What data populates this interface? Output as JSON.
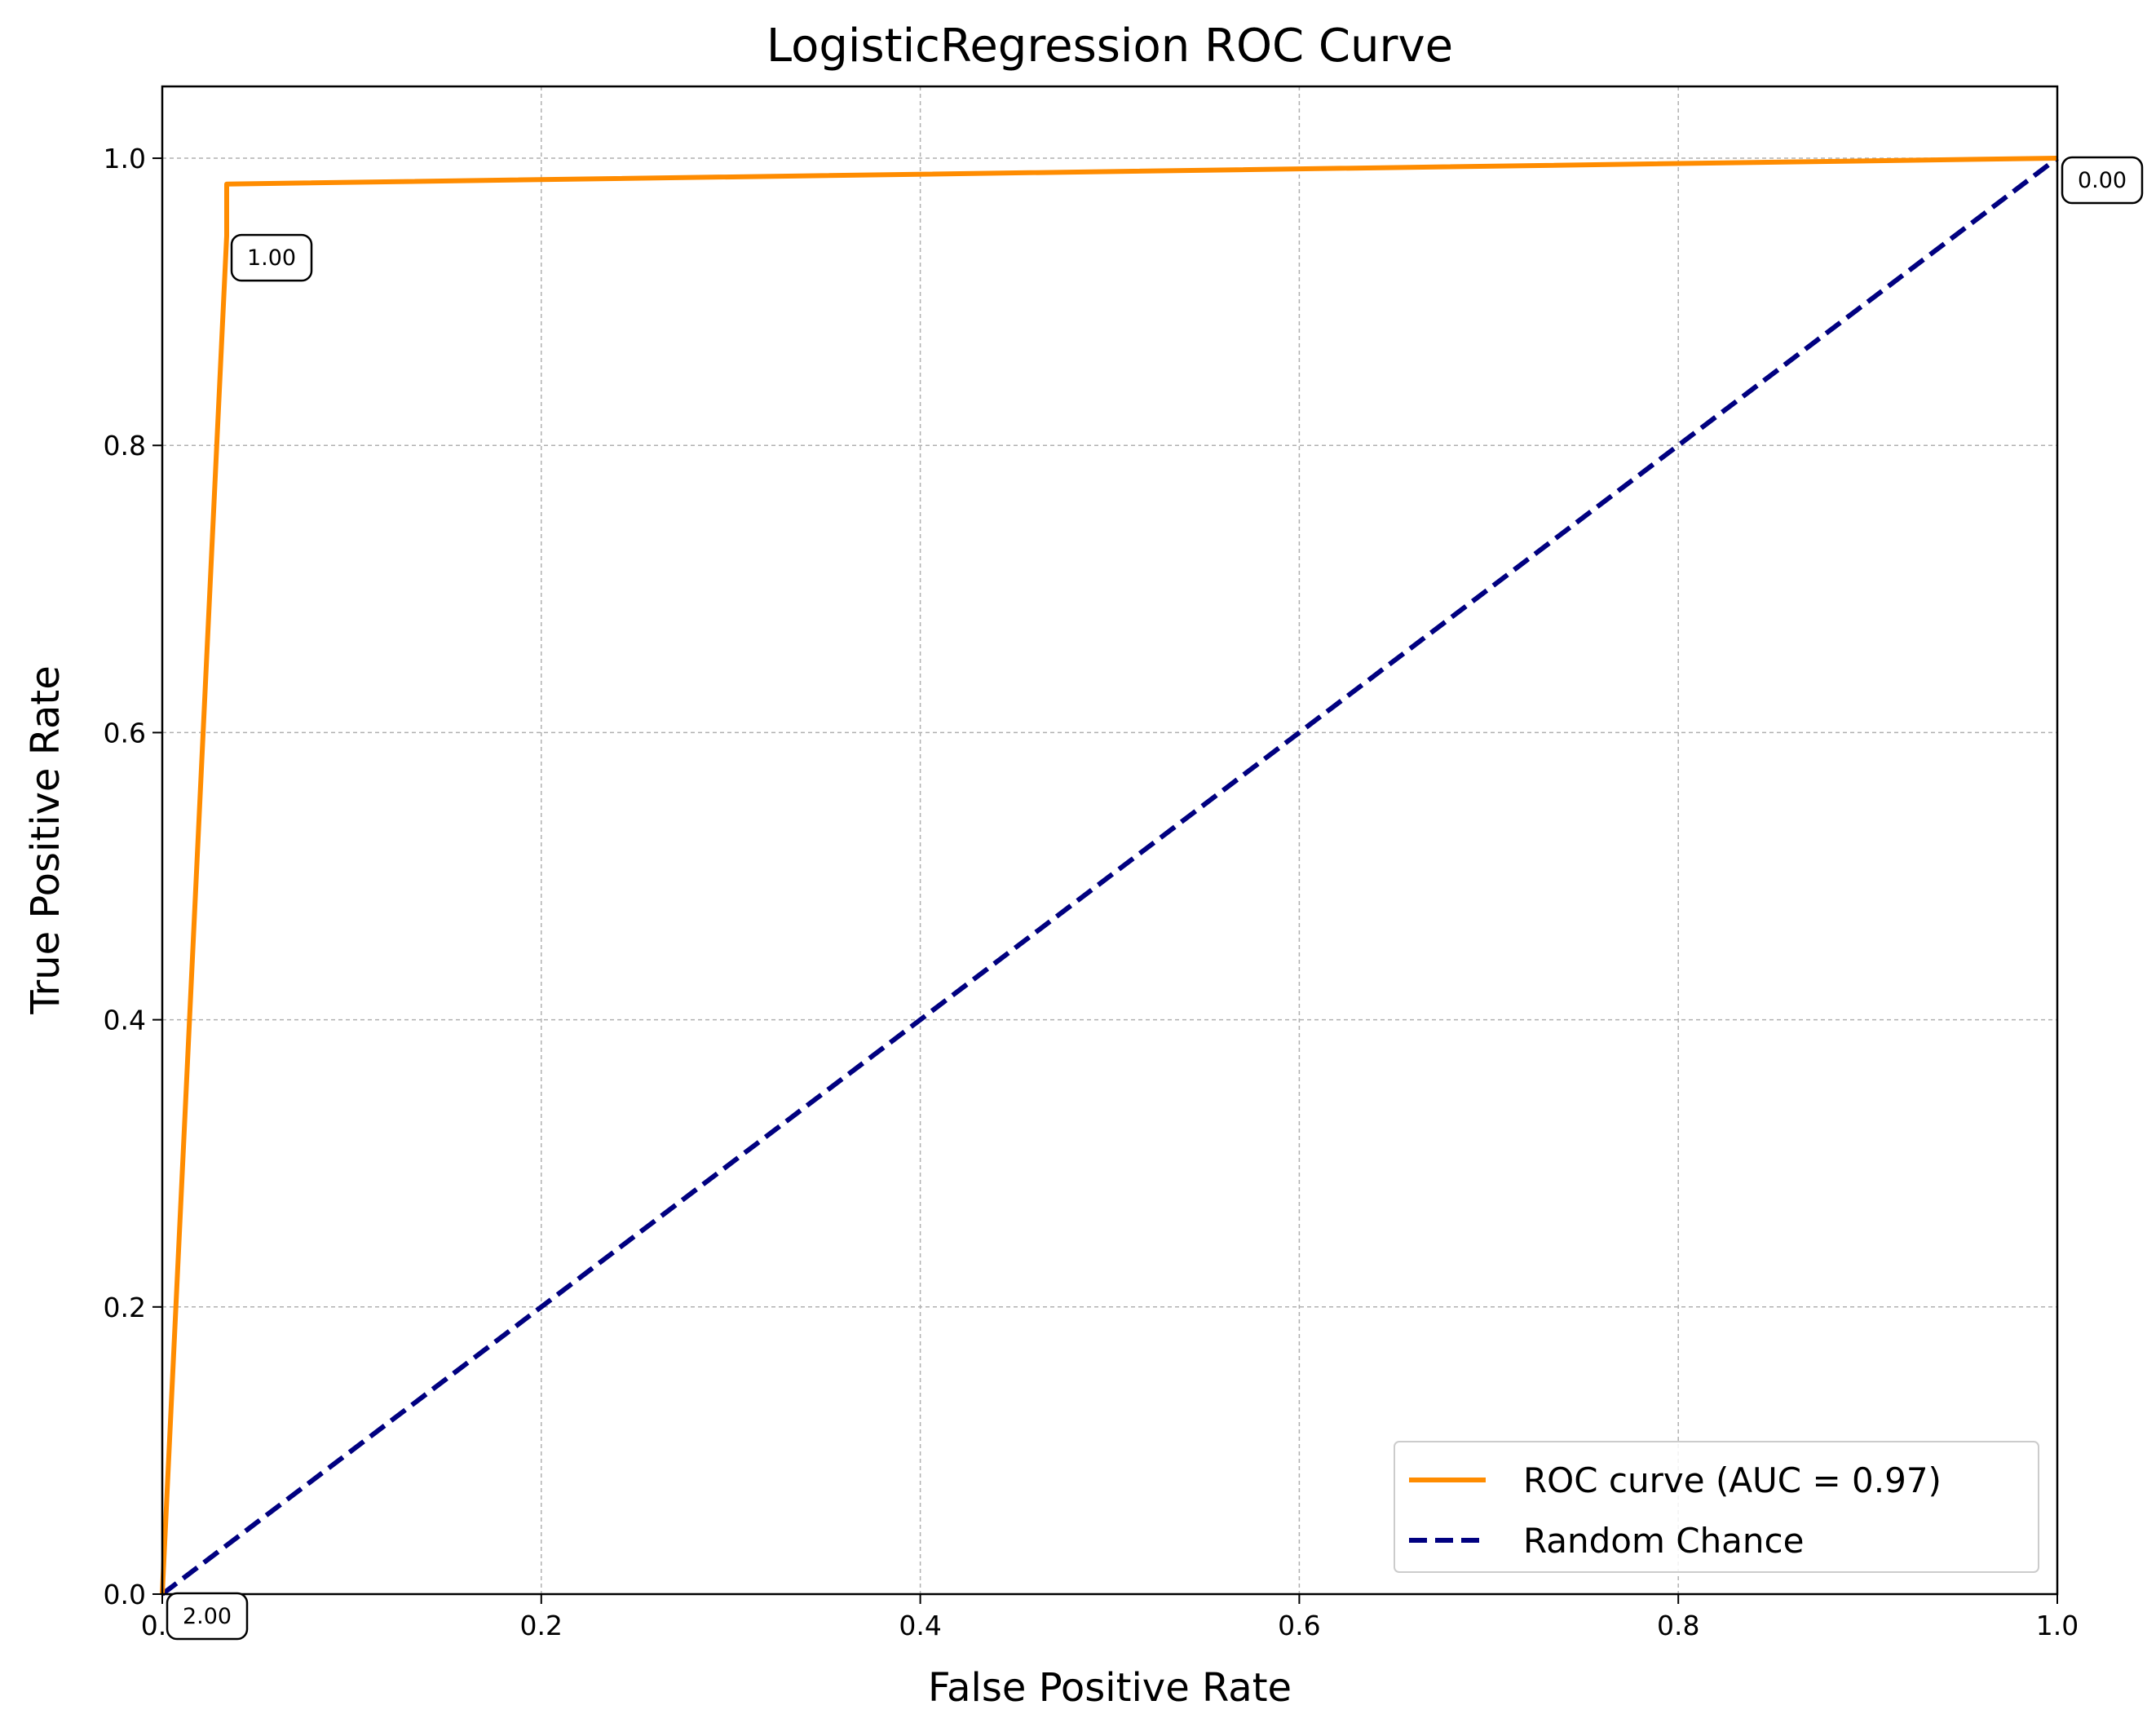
{
  "chart_data": {
    "type": "line",
    "title": "LogisticRegression ROC Curve",
    "xlabel": "False Positive Rate",
    "ylabel": "True Positive Rate",
    "xlim": [
      0.0,
      1.0
    ],
    "ylim": [
      0.0,
      1.05
    ],
    "x_ticks": [
      "0.0",
      "0.2",
      "0.4",
      "0.6",
      "0.8",
      "1.0"
    ],
    "x_tick_values": [
      0.0,
      0.2,
      0.4,
      0.6,
      0.8,
      1.0
    ],
    "y_ticks": [
      "0.0",
      "0.2",
      "0.4",
      "0.6",
      "0.8",
      "1.0"
    ],
    "y_tick_values": [
      0.0,
      0.2,
      0.4,
      0.6,
      0.8,
      1.0
    ],
    "grid": true,
    "legend_position": "lower right",
    "series": [
      {
        "name": "ROC curve (AUC = 0.97)",
        "color": "#ff8c00",
        "style": "solid",
        "x": [
          0.0,
          0.034,
          0.034,
          1.0
        ],
        "y": [
          0.0,
          0.946,
          0.982,
          1.0
        ]
      },
      {
        "name": "Random Chance",
        "color": "#000080",
        "style": "dashed",
        "x": [
          0.0,
          1.0
        ],
        "y": [
          0.0,
          1.0
        ]
      }
    ],
    "annotations": [
      {
        "text": "2.00",
        "x": 0.0,
        "y": 0.0
      },
      {
        "text": "1.00",
        "x": 0.034,
        "y": 0.946
      },
      {
        "text": "0.00",
        "x": 1.0,
        "y": 1.0
      }
    ]
  }
}
